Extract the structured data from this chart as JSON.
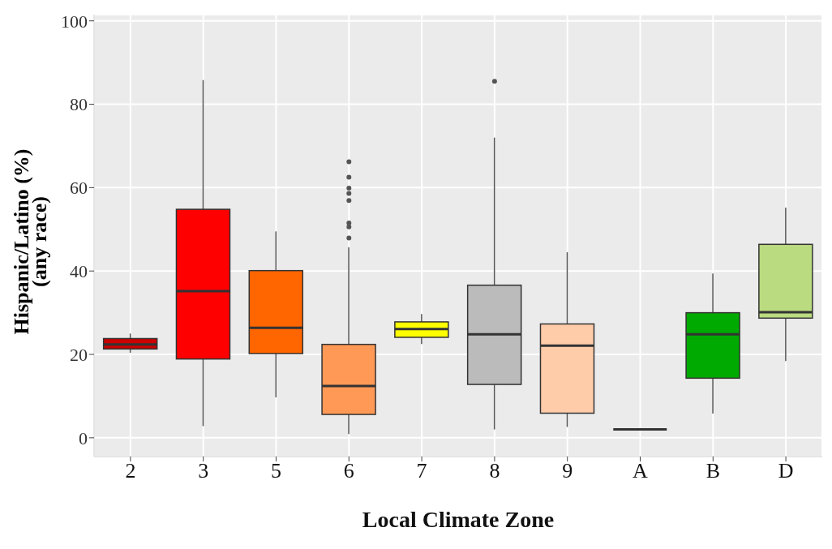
{
  "chart_data": {
    "type": "box",
    "xlabel": "Local Climate Zone",
    "ylabel": "Hispanic/Latino (%)\n(any race)",
    "categories": [
      "2",
      "3",
      "5",
      "6",
      "7",
      "8",
      "9",
      "A",
      "B",
      "D"
    ],
    "colors": [
      "#cc0000",
      "#ff0000",
      "#ff6600",
      "#ff9955",
      "#ffff00",
      "#bbbbbb",
      "#ffccaa",
      "#333333",
      "#00aa00",
      "#bbdb80"
    ],
    "boxes": [
      {
        "low": 20.4,
        "q1": 21.3,
        "median": 22.4,
        "q3": 23.8,
        "high": 25
      },
      {
        "low": 2.8,
        "q1": 18.9,
        "median": 35.2,
        "q3": 54.8,
        "high": 85.8
      },
      {
        "low": 9.7,
        "q1": 20.2,
        "median": 26.4,
        "q3": 40.1,
        "high": 49.5
      },
      {
        "low": 0.9,
        "q1": 5.6,
        "median": 12.4,
        "q3": 22.4,
        "high": 45.7,
        "outliers": [
          66.2,
          62.5,
          59.9,
          58.6,
          56.9,
          51.5,
          50.6,
          47.9
        ]
      },
      {
        "low": 22.5,
        "q1": 24.1,
        "median": 26.1,
        "q3": 27.8,
        "high": 29.7
      },
      {
        "low": 2,
        "q1": 12.8,
        "median": 24.8,
        "q3": 36.6,
        "high": 72,
        "outliers": [
          85.5
        ]
      },
      {
        "low": 2.6,
        "q1": 5.9,
        "median": 22.1,
        "q3": 27.3,
        "high": 44.5
      },
      {
        "low": 2,
        "q1": 2,
        "median": 2,
        "q3": 2,
        "high": 2
      },
      {
        "low": 5.8,
        "q1": 14.3,
        "median": 24.8,
        "q3": 30,
        "high": 39.4
      },
      {
        "low": 18.4,
        "q1": 28.7,
        "median": 30.1,
        "q3": 46.4,
        "high": 55.2
      }
    ],
    "ylim": [
      -4.5,
      101.5
    ],
    "yticks": [
      0,
      20,
      40,
      60,
      80,
      100
    ],
    "grid": true
  }
}
